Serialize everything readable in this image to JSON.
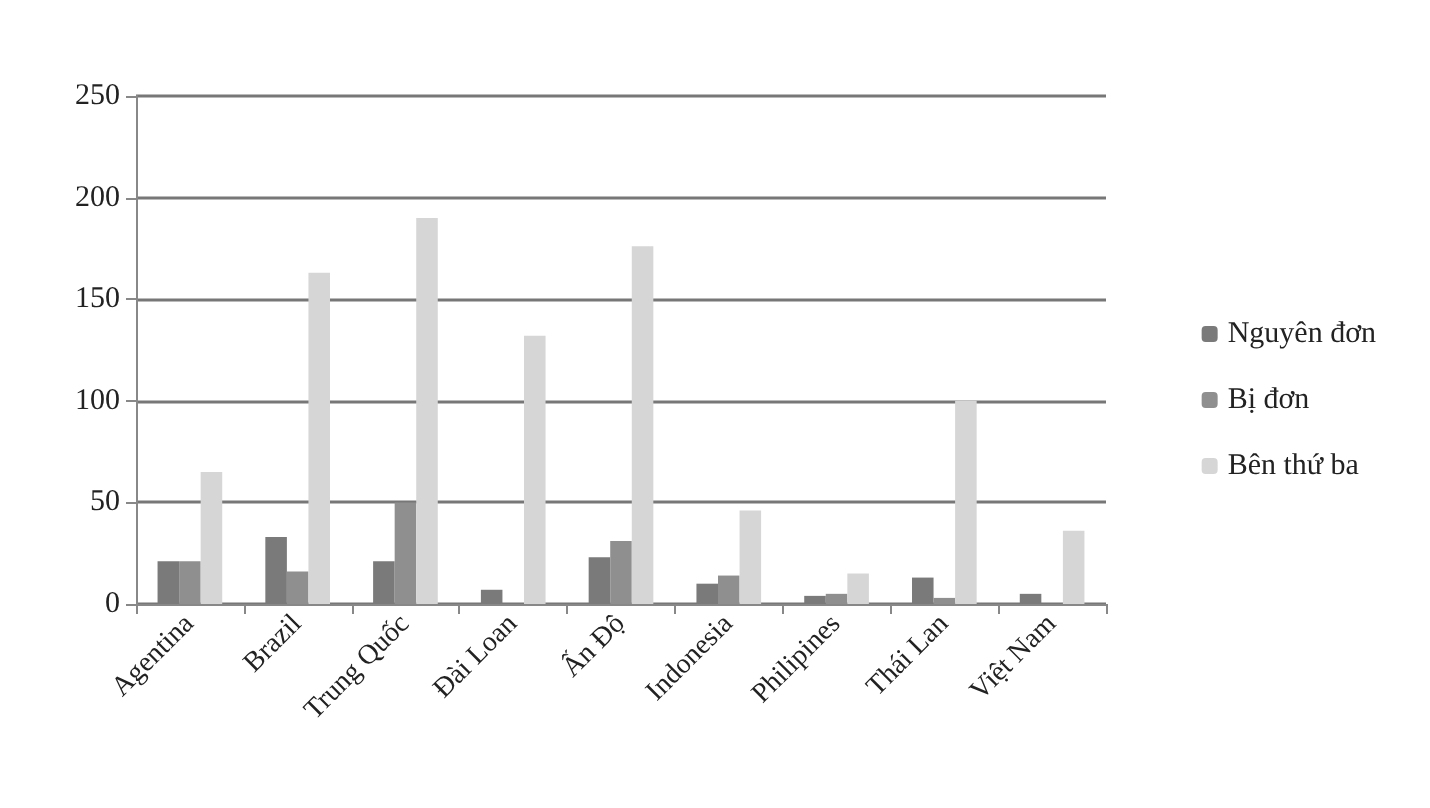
{
  "chart_data": {
    "type": "bar",
    "categories": [
      "Agentina",
      "Brazil",
      "Trung Quốc",
      "Đài Loan",
      "Ấn Độ",
      "Indonesia",
      "Philipines",
      "Thái Lan",
      "Việt Nam"
    ],
    "series": [
      {
        "name": "Nguyên đơn",
        "color": "#7a7a7a",
        "values": [
          21,
          33,
          21,
          7,
          23,
          10,
          4,
          13,
          5
        ]
      },
      {
        "name": "Bị đơn",
        "color": "#8f8f8f",
        "values": [
          21,
          16,
          50,
          0,
          31,
          14,
          5,
          3,
          0
        ]
      },
      {
        "name": "Bên thứ ba",
        "color": "#d6d6d6",
        "values": [
          65,
          163,
          190,
          132,
          176,
          46,
          15,
          100,
          36
        ]
      }
    ],
    "ylim": [
      0,
      250
    ],
    "yticks": [
      0,
      50,
      100,
      150,
      200,
      250
    ],
    "grid": "y",
    "legend": "right"
  }
}
